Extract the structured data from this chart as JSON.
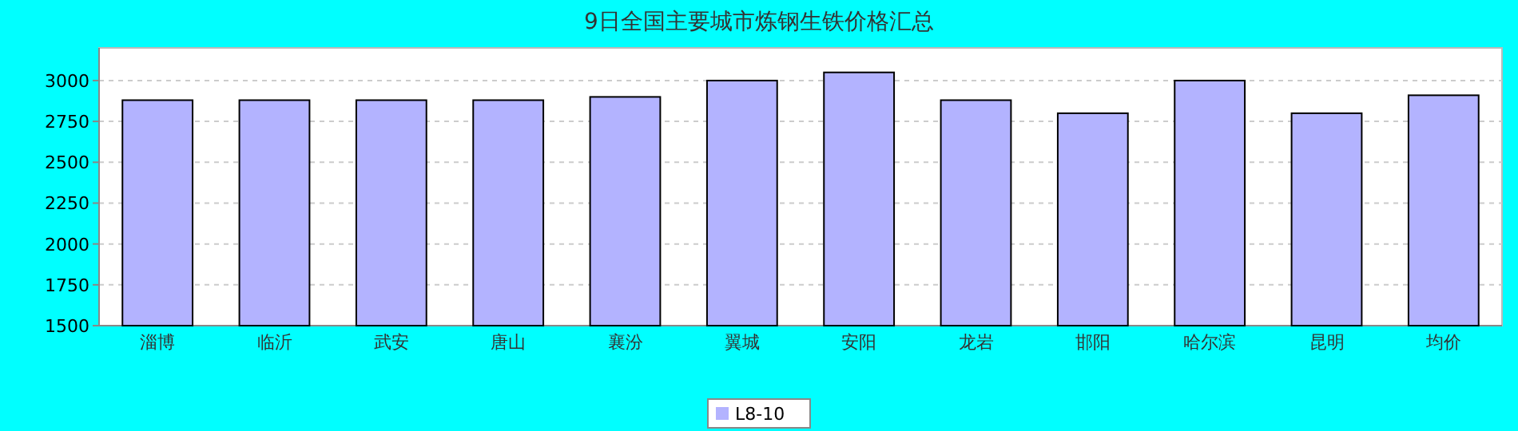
{
  "chart_data": {
    "type": "bar",
    "title": "9日全国主要城市炼钢生铁价格汇总",
    "categories": [
      "淄博",
      "临沂",
      "武安",
      "唐山",
      "襄汾",
      "翼城",
      "安阳",
      "龙岩",
      "邯阳",
      "哈尔滨",
      "昆明",
      "均价"
    ],
    "series": [
      {
        "name": "L8-10",
        "color": "#b3b3ff",
        "values": [
          2880,
          2880,
          2880,
          2880,
          2900,
          3000,
          3050,
          2880,
          2800,
          3000,
          2800,
          2910
        ]
      }
    ],
    "ylim": [
      1500,
      3200
    ],
    "yticks": [
      1500,
      1750,
      2000,
      2250,
      2500,
      2750,
      3000
    ],
    "grid": "y",
    "legend": "bottom"
  }
}
